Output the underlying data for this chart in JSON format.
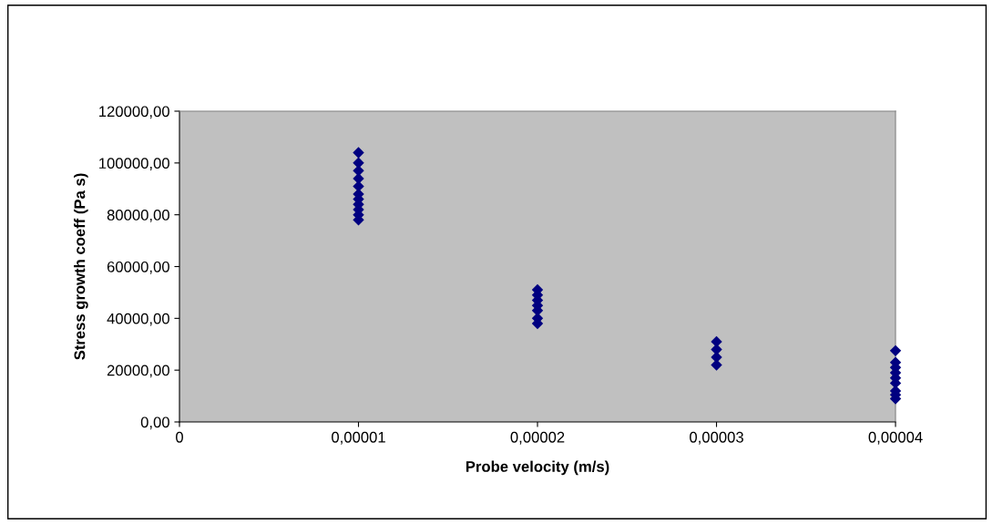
{
  "chart_data": {
    "type": "scatter",
    "xlabel": "Probe velocity (m/s)",
    "ylabel": "Stress growth coeff (Pa s)",
    "x": [
      1e-05,
      1e-05,
      1e-05,
      1e-05,
      1e-05,
      1e-05,
      1e-05,
      1e-05,
      1e-05,
      1e-05,
      1e-05,
      2e-05,
      2e-05,
      2e-05,
      2e-05,
      2e-05,
      2e-05,
      2e-05,
      3e-05,
      3e-05,
      3e-05,
      3e-05,
      4e-05,
      4e-05,
      4e-05,
      4e-05,
      4e-05,
      4e-05,
      4e-05,
      4e-05,
      4e-05
    ],
    "values": [
      104000,
      100000,
      97000,
      94000,
      91000,
      88000,
      86000,
      84000,
      82000,
      80000,
      78000,
      51000,
      49000,
      47000,
      45000,
      43000,
      40000,
      38000,
      31000,
      28000,
      25000,
      22000,
      27500,
      23000,
      21000,
      19000,
      17000,
      15000,
      12000,
      10500,
      9000
    ],
    "color": "#000080",
    "marker": "diamond",
    "xlim": [
      0,
      4e-05
    ],
    "xticks": [
      0,
      {
        "value": 1e-05,
        "label": "0,00001"
      },
      {
        "value": 2e-05,
        "label": "0,00002"
      },
      {
        "value": 3e-05,
        "label": "0,00003"
      },
      {
        "value": 4e-05,
        "label": "0,00004"
      }
    ],
    "ylim": [
      0,
      120000
    ],
    "yticks": [
      {
        "value": 0,
        "label": "0,00"
      },
      {
        "value": 20000,
        "label": "20000,00"
      },
      {
        "value": 40000,
        "label": "40000,00"
      },
      {
        "value": 60000,
        "label": "60000,00"
      },
      {
        "value": 80000,
        "label": "80000,00"
      },
      {
        "value": 100000,
        "label": "100000,00"
      },
      {
        "value": 120000,
        "label": "120000,00"
      }
    ],
    "grid": false,
    "legend": false
  }
}
